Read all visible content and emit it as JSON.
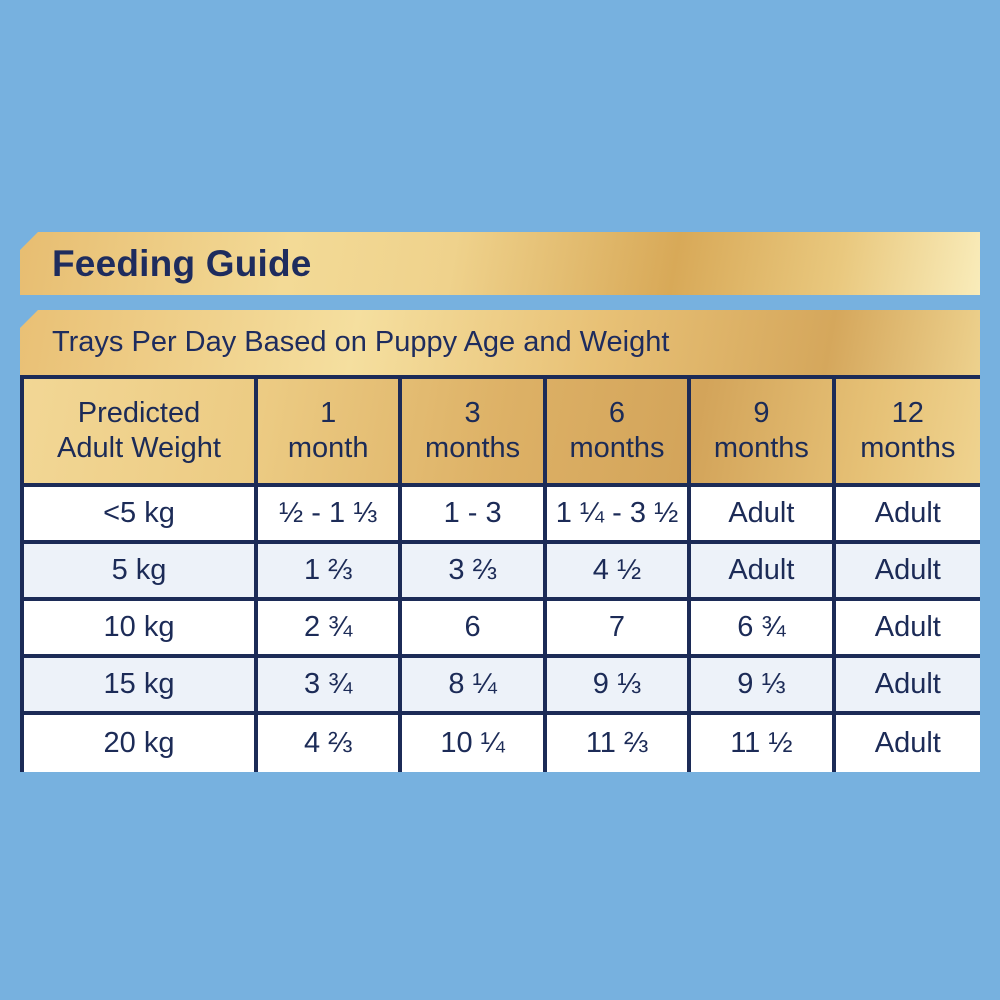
{
  "page": {
    "background_color": "#77b1df",
    "title": "Feeding Guide",
    "subtitle": "Trays Per Day Based on Puppy Age and Weight"
  },
  "colors": {
    "navy_text_border": "#1c2b57",
    "gold_dark": "#d5a75c",
    "gold_light": "#f9ecba",
    "row_alt": "#edf2f9",
    "row_white": "#ffffff"
  },
  "table": {
    "headers": [
      {
        "line1": "Predicted",
        "line2": "Adult Weight"
      },
      {
        "line1": "1",
        "line2": "month"
      },
      {
        "line1": "3",
        "line2": "months"
      },
      {
        "line1": "6",
        "line2": "months"
      },
      {
        "line1": "9",
        "line2": "months"
      },
      {
        "line1": "12",
        "line2": "months"
      }
    ],
    "rows": [
      {
        "cells": [
          "<5 kg",
          "½ - 1 ⅓",
          "1 - 3",
          "1 ¼ - 3 ½",
          "Adult",
          "Adult"
        ]
      },
      {
        "cells": [
          "5 kg",
          "1 ⅔",
          "3 ⅔",
          "4 ½",
          "Adult",
          "Adult"
        ]
      },
      {
        "cells": [
          "10 kg",
          "2 ¾",
          "6",
          "7",
          "6 ¾",
          "Adult"
        ]
      },
      {
        "cells": [
          "15 kg",
          "3 ¾",
          "8 ¼",
          "9 ⅓",
          "9 ⅓",
          "Adult"
        ]
      },
      {
        "cells": [
          "20 kg",
          "4 ⅔",
          "10 ¼",
          "11 ⅔",
          "11 ½",
          "Adult"
        ]
      }
    ]
  },
  "chart_data": {
    "type": "table",
    "title": "Feeding Guide",
    "subtitle": "Trays Per Day Based on Puppy Age and Weight",
    "columns": [
      "Predicted Adult Weight",
      "1 month",
      "3 months",
      "6 months",
      "9 months",
      "12 months"
    ],
    "rows": [
      [
        "<5 kg",
        "½ - 1 ⅓",
        "1 - 3",
        "1 ¼ - 3 ½",
        "Adult",
        "Adult"
      ],
      [
        "5 kg",
        "1 ⅔",
        "3 ⅔",
        "4 ½",
        "Adult",
        "Adult"
      ],
      [
        "10 kg",
        "2 ¾",
        "6",
        "7",
        "6 ¾",
        "Adult"
      ],
      [
        "15 kg",
        "3 ¾",
        "8 ¼",
        "9 ⅓",
        "9 ⅓",
        "Adult"
      ],
      [
        "20 kg",
        "4 ⅔",
        "10 ¼",
        "11 ⅔",
        "11 ½",
        "Adult"
      ]
    ]
  }
}
